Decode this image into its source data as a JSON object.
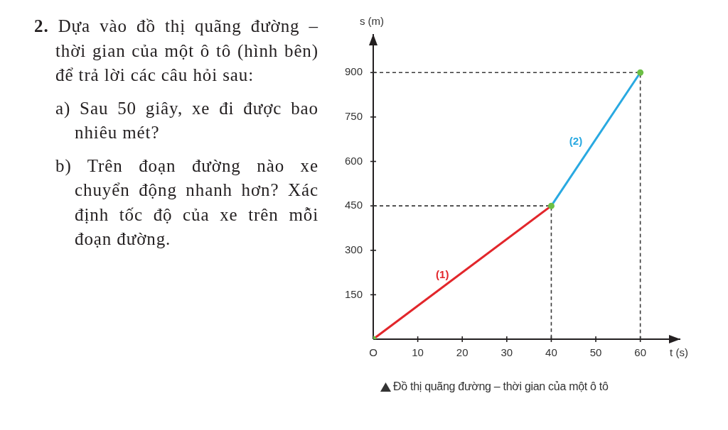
{
  "chart_data": {
    "type": "line",
    "title": "Đồ thị quãng đường – thời gian của một ô tô",
    "xlabel": "t (s)",
    "ylabel": "s (m)",
    "annotations": [
      "2. Dựa vào đồ thị quãng đường – thời gian của một ô tô (hình bên) để trả lời các câu hỏi sau:",
      "a) Sau 50 giây, xe đi được bao nhiêu mét?",
      "b) Trên đoạn đường nào xe chuyển động nhanh hơn? Xác định tốc độ của xe trên mỗi đoạn đường."
    ],
    "xlim": [
      0,
      69
    ],
    "xticks": [
      {
        "value": 0,
        "label": "O"
      },
      10,
      20,
      30,
      40,
      50,
      60
    ],
    "ylim": [
      0,
      1030
    ],
    "yticks": [
      150,
      300,
      450,
      600,
      750,
      900
    ],
    "marker": "none",
    "series": [
      {
        "name": "(1)",
        "color": "#e2262b",
        "x": [
          0,
          40
        ],
        "values": [
          0,
          450
        ]
      },
      {
        "name": "(2)",
        "color": "#29a9e1",
        "x": [
          40,
          60
        ],
        "values": [
          450,
          900
        ]
      },
      {
        "color": "#3a3a3a",
        "x": [
          0,
          40,
          40
        ],
        "values": [
          450,
          450,
          0
        ],
        "line_style": "dashed"
      },
      {
        "color": "#3a3a3a",
        "x": [
          0,
          60,
          60
        ],
        "values": [
          900,
          900,
          0
        ],
        "line_style": "dashed"
      },
      {
        "type": "scatter",
        "color": "#6cbf45",
        "x": [
          0,
          40,
          60
        ],
        "values": [
          0,
          450,
          900
        ],
        "marker": "circle"
      }
    ]
  }
}
